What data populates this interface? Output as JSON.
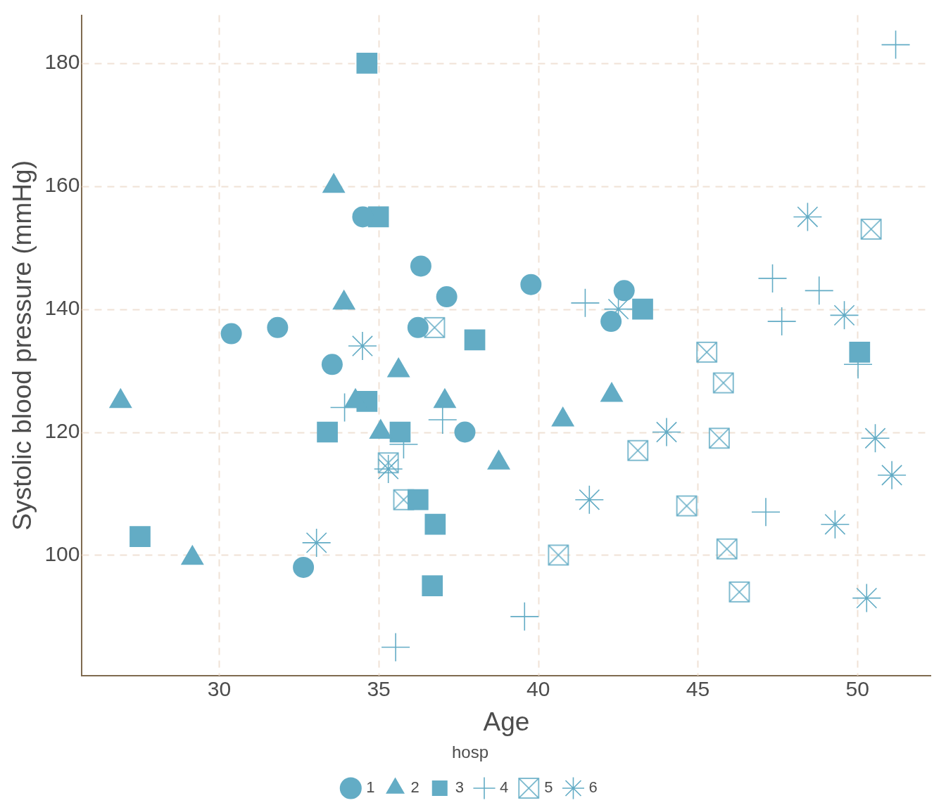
{
  "chart_data": {
    "type": "scatter",
    "x_label": "Age",
    "y_label": "Systolic blood pressure (mmHg)",
    "legend_title": "hosp",
    "legend": "bottom",
    "grid": true,
    "xlim": [
      25.7,
      52.3
    ],
    "ylim": [
      80.4,
      187.8
    ],
    "xticks": [
      30,
      35,
      40,
      45,
      50
    ],
    "yticks": [
      100,
      120,
      140,
      160,
      180
    ],
    "series": [
      {
        "name": "1",
        "color": "#63acc5",
        "marker": "circle",
        "x": [
          30.38,
          31.83,
          33.54,
          32.64,
          34.5,
          36.32,
          36.23,
          37.13,
          37.7,
          39.77,
          42.69,
          42.28
        ],
        "values": [
          136,
          137,
          131,
          98,
          155,
          147,
          137,
          142,
          120,
          144,
          143,
          138
        ]
      },
      {
        "name": "2",
        "color": "#63acc5",
        "marker": "triangle",
        "x": [
          26.91,
          29.16,
          33.59,
          33.91,
          34.27,
          35.06,
          35.62,
          37.07,
          38.76,
          40.77,
          42.3
        ],
        "values": [
          125,
          99.5,
          160,
          141,
          125,
          120,
          130,
          125,
          115,
          122,
          126
        ]
      },
      {
        "name": "3",
        "color": "#63acc5",
        "marker": "square",
        "x": [
          34.63,
          34.99,
          27.52,
          33.39,
          34.63,
          35.67,
          36.23,
          36.77,
          36.68,
          38.01,
          43.27,
          50.07
        ],
        "values": [
          180,
          155,
          103,
          120,
          125,
          120,
          109,
          105,
          95,
          135,
          140,
          133
        ]
      },
      {
        "name": "4",
        "color": "#63acc5",
        "marker": "plus",
        "x": [
          51.2,
          33.93,
          35.78,
          37.0,
          35.53,
          39.57,
          41.47,
          47.34,
          48.8,
          47.63,
          50.02,
          47.13
        ],
        "values": [
          183,
          124,
          118,
          122,
          85,
          90,
          141,
          145,
          143,
          138,
          131,
          107
        ]
      },
      {
        "name": "5",
        "color": "#63acc5",
        "marker": "square_x",
        "x": [
          36.75,
          35.3,
          35.78,
          40.63,
          43.12,
          44.65,
          45.28,
          45.8,
          45.67,
          45.91,
          46.3,
          50.43
        ],
        "values": [
          137,
          115,
          109,
          100,
          117,
          108,
          133,
          128,
          119,
          101,
          94,
          153
        ]
      },
      {
        "name": "6",
        "color": "#63acc5",
        "marker": "asterisk",
        "x": [
          34.49,
          33.05,
          35.3,
          41.6,
          42.51,
          44.02,
          48.44,
          49.59,
          49.3,
          50.56,
          51.08,
          50.29
        ],
        "values": [
          134,
          102,
          114,
          109,
          140,
          120,
          155,
          139,
          105,
          119,
          113,
          93
        ]
      }
    ]
  }
}
